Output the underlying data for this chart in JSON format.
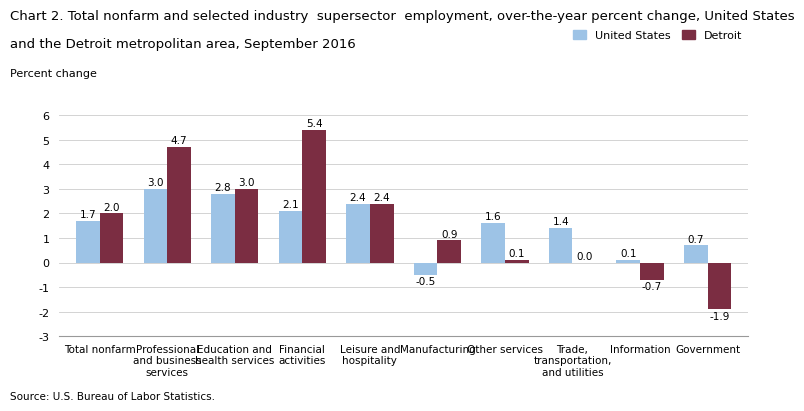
{
  "title_line1": "Chart 2. Total nonfarm and selected industry  supersector  employment, over-the-year percent change, United States",
  "title_line2": "and the Detroit metropolitan area, September 2016",
  "ylabel": "Percent change",
  "categories": [
    "Total nonfarm",
    "Professional\nand business\nservices",
    "Education and\nhealth services",
    "Financial\nactivities",
    "Leisure and\nhospitality",
    "Manufacturing",
    "Other services",
    "Trade,\ntransportation,\nand utilities",
    "Information",
    "Government"
  ],
  "us_values": [
    1.7,
    3.0,
    2.8,
    2.1,
    2.4,
    -0.5,
    1.6,
    1.4,
    0.1,
    0.7
  ],
  "detroit_values": [
    2.0,
    4.7,
    3.0,
    5.4,
    2.4,
    0.9,
    0.1,
    0.0,
    -0.7,
    -1.9
  ],
  "us_color": "#9DC3E6",
  "detroit_color": "#7B2D42",
  "ylim": [
    -3.0,
    6.2
  ],
  "yticks": [
    -3.0,
    -2.0,
    -1.0,
    0.0,
    1.0,
    2.0,
    3.0,
    4.0,
    5.0,
    6.0
  ],
  "ytick_labels": [
    "-3.0",
    "-2.0",
    "-1.0",
    "0.0",
    "1.0",
    "2.0",
    "3.0",
    "4.0",
    "5.0",
    "6.0"
  ],
  "legend_us": "United States",
  "legend_detroit": "Detroit",
  "source": "Source: U.S. Bureau of Labor Statistics.",
  "bar_width": 0.35,
  "title_fontsize": 9.5,
  "label_fontsize": 8,
  "tick_fontsize": 8,
  "value_fontsize": 7.5,
  "xtick_fontsize": 7.5
}
